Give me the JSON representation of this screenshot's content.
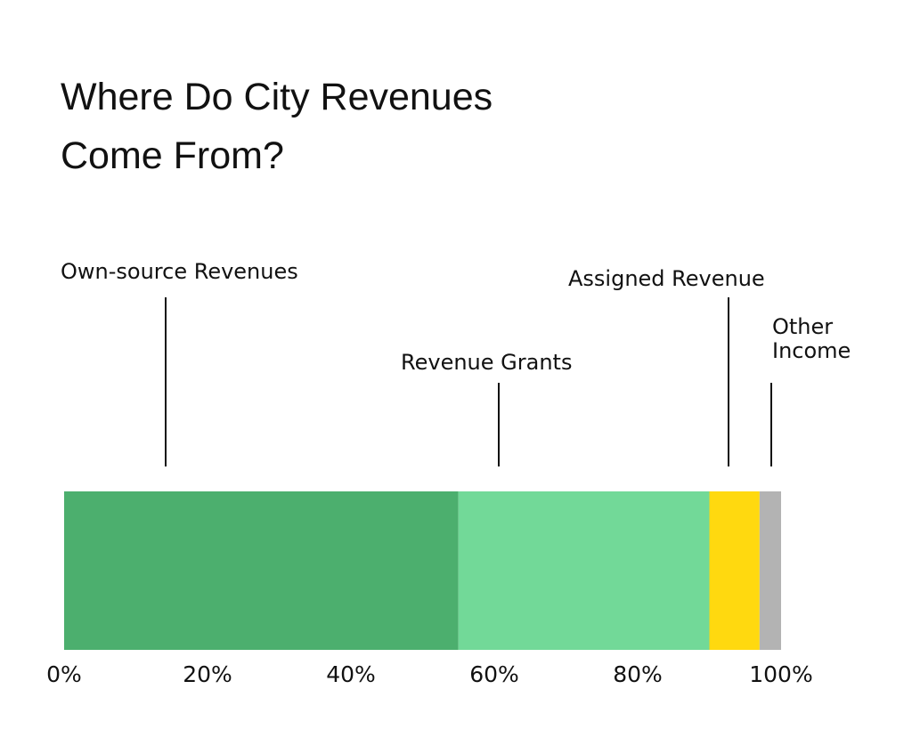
{
  "chart_data": {
    "type": "bar",
    "orientation": "horizontal-stacked-100",
    "title": [
      "Where Do City Revenues",
      "Come From?"
    ],
    "series": [
      {
        "name": "Own-source Revenues",
        "value": 55,
        "color": "#4caf6e"
      },
      {
        "name": "Revenue Grants",
        "value": 35,
        "color": "#72d998"
      },
      {
        "name": "Assigned Revenue",
        "value": 7,
        "color": "#ffd90f"
      },
      {
        "name": "Other Income",
        "value": 3,
        "color": "#b3b3b3"
      }
    ],
    "x_ticks": [
      "0%",
      "20%",
      "40%",
      "60%",
      "80%",
      "100%"
    ],
    "xlim": [
      0,
      100
    ],
    "legend": "callouts-above-bar",
    "grid": false
  }
}
